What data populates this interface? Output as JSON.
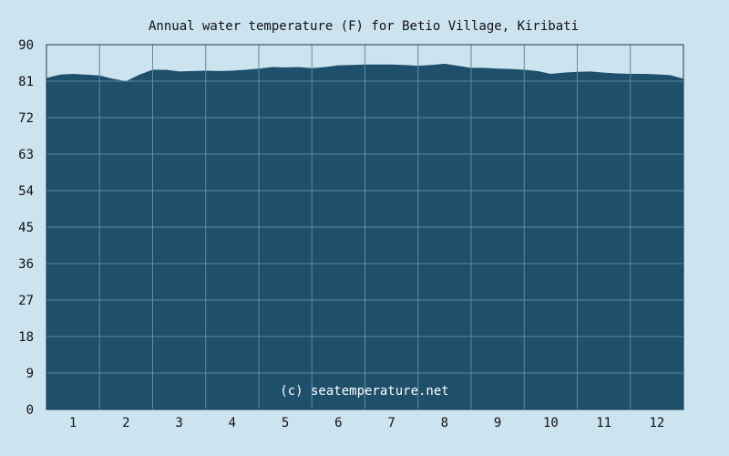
{
  "chart_data": {
    "type": "area",
    "title": "Annual water temperature (F) for Betio Village, Kiribati",
    "credit": "(c) seatemperature.net",
    "xlabel": "",
    "ylabel": "",
    "ylim": [
      0,
      90
    ],
    "yticks": [
      "0",
      "9",
      "18",
      "27",
      "36",
      "45",
      "54",
      "63",
      "72",
      "81",
      "90"
    ],
    "xlim": [
      0.5,
      12.5
    ],
    "xticks": [
      "1",
      "2",
      "3",
      "4",
      "5",
      "6",
      "7",
      "8",
      "9",
      "10",
      "11",
      "12"
    ],
    "grid": true,
    "series": [
      {
        "x": [
          0.5,
          0.75,
          1.0,
          1.25,
          1.5,
          1.75,
          2.0,
          2.25,
          2.5,
          2.75,
          3.0,
          3.25,
          3.5,
          3.75,
          4.0,
          4.25,
          4.5,
          4.75,
          5.0,
          5.25,
          5.5,
          5.75,
          6.0,
          6.25,
          6.5,
          6.75,
          7.0,
          7.25,
          7.5,
          7.75,
          8.0,
          8.25,
          8.5,
          8.75,
          9.0,
          9.25,
          9.5,
          9.75,
          10.0,
          10.25,
          10.5,
          10.75,
          11.0,
          11.25,
          11.5,
          11.75,
          12.0,
          12.25,
          12.5
        ],
        "values": [
          81.8,
          82.6,
          82.8,
          82.6,
          82.4,
          81.6,
          81.0,
          82.6,
          83.8,
          83.8,
          83.4,
          83.5,
          83.6,
          83.5,
          83.6,
          83.8,
          84.1,
          84.5,
          84.4,
          84.5,
          84.2,
          84.5,
          84.9,
          85.0,
          85.1,
          85.1,
          85.1,
          85.0,
          84.8,
          85.0,
          85.3,
          84.8,
          84.3,
          84.3,
          84.1,
          84.0,
          83.8,
          83.5,
          82.8,
          83.1,
          83.3,
          83.4,
          83.1,
          82.9,
          82.8,
          82.8,
          82.7,
          82.5,
          81.6
        ]
      }
    ],
    "colors": {
      "background": "#cce4f0",
      "area": "#1e4f6b",
      "grid": "#5d8aa4",
      "axis": "#1a3a50"
    }
  }
}
